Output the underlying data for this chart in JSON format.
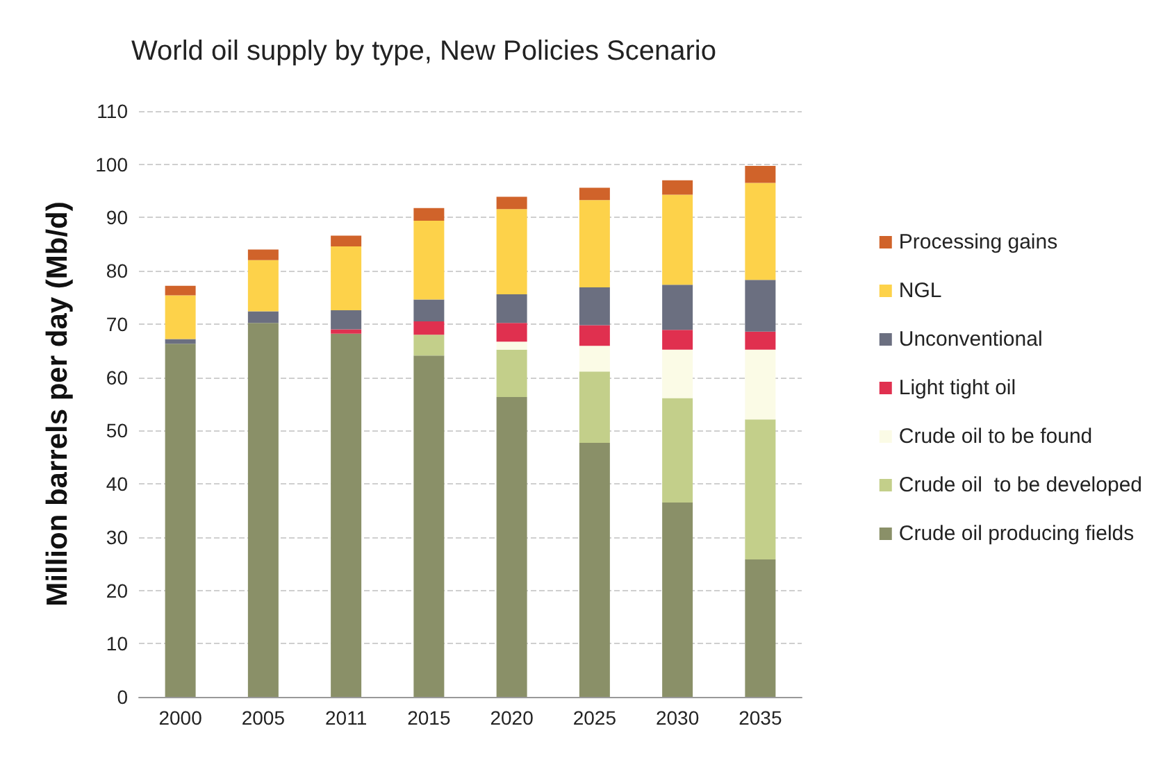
{
  "chart_data": {
    "type": "bar",
    "title": "World oil supply by type, New Policies Scenario",
    "ylabel": "Million barrels per day (Mb/d)",
    "categories": [
      "2000",
      "2005",
      "2011",
      "2015",
      "2020",
      "2025",
      "2030",
      "2035"
    ],
    "stacked": true,
    "ylim": [
      0,
      110
    ],
    "yticks": [
      0,
      10,
      20,
      30,
      40,
      50,
      60,
      70,
      80,
      90,
      100,
      110
    ],
    "grid": "y",
    "legend": "right",
    "series": [
      {
        "name": "Crude oil producing fields",
        "color": "#8a9068",
        "values": [
          66.3,
          70.2,
          68.2,
          64.1,
          56.3,
          47.7,
          36.5,
          25.8
        ]
      },
      {
        "name": "Crude oil  to be developed",
        "color": "#c3cf8a",
        "values": [
          0,
          0,
          0,
          3.9,
          8.9,
          13.4,
          19.6,
          26.3
        ]
      },
      {
        "name": "Crude oil to be found",
        "color": "#fbfbe6",
        "values": [
          0,
          0,
          0,
          0,
          1.5,
          4.8,
          9.1,
          13.1
        ]
      },
      {
        "name": "Light tight oil",
        "color": "#e0304f",
        "values": [
          0,
          0,
          0.8,
          2.5,
          3.5,
          3.9,
          3.7,
          3.4
        ]
      },
      {
        "name": "Unconventional",
        "color": "#6b6f80",
        "values": [
          0.9,
          2.2,
          3.6,
          4.1,
          5.4,
          7.1,
          8.5,
          9.7
        ]
      },
      {
        "name": "NGL",
        "color": "#fdd24a",
        "values": [
          8.2,
          9.6,
          12,
          14.8,
          16,
          16.4,
          16.9,
          18.2
        ]
      },
      {
        "name": "Processing gains",
        "color": "#d0632a",
        "values": [
          1.8,
          2,
          2,
          2.4,
          2.3,
          2.3,
          2.7,
          3.2
        ]
      }
    ]
  }
}
